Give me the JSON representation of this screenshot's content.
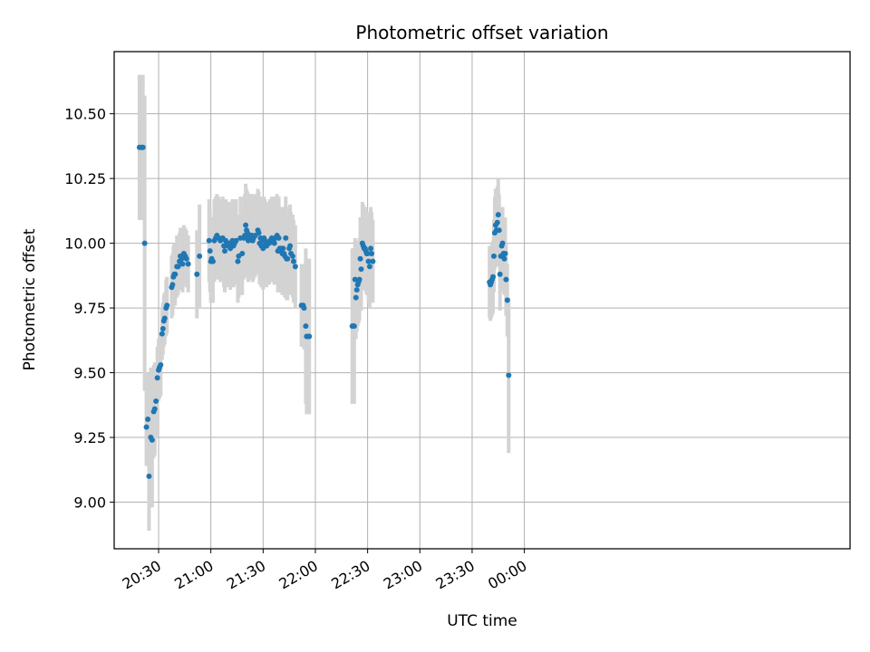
{
  "chart_data": {
    "type": "scatter",
    "title": "Photometric offset variation",
    "xlabel": "UTC time",
    "ylabel": "Photometric offset",
    "x_unit": "minutes after 20:00 UTC",
    "xlim": [
      4.5,
      427.0
    ],
    "ylim": [
      8.82,
      10.74
    ],
    "grid": true,
    "x_ticks": [
      {
        "value": 30,
        "label": "20:30"
      },
      {
        "value": 60,
        "label": "21:00"
      },
      {
        "value": 90,
        "label": "21:30"
      },
      {
        "value": 120,
        "label": "22:00"
      },
      {
        "value": 150,
        "label": "22:30"
      },
      {
        "value": 180,
        "label": "23:00"
      },
      {
        "value": 210,
        "label": "23:30"
      },
      {
        "value": 240,
        "label": "00:00"
      }
    ],
    "y_ticks": [
      {
        "value": 9.0,
        "label": "9.00"
      },
      {
        "value": 9.25,
        "label": "9.25"
      },
      {
        "value": 9.5,
        "label": "9.50"
      },
      {
        "value": 9.75,
        "label": "9.75"
      },
      {
        "value": 10.0,
        "label": "10.00"
      },
      {
        "value": 10.25,
        "label": "10.25"
      },
      {
        "value": 10.5,
        "label": "10.50"
      }
    ],
    "colors": {
      "points": "#1f77b4",
      "error_bars": "#d3d3d3",
      "grid": "#b0b0b0",
      "axes": "#000000"
    },
    "series": [
      {
        "points": [
          [
            19.0,
            10.37,
            0.28
          ],
          [
            20.0,
            10.37,
            0.28
          ],
          [
            21.0,
            10.37,
            0.28
          ],
          [
            22.0,
            10.0,
            0.57
          ],
          [
            23.0,
            9.29,
            0.15
          ],
          [
            23.8,
            9.32,
            0.18
          ],
          [
            24.5,
            9.1,
            0.21
          ],
          [
            25.5,
            9.25,
            0.27
          ],
          [
            26.3,
            9.24,
            0.26
          ],
          [
            27.2,
            9.35,
            0.18
          ],
          [
            27.8,
            9.36,
            0.18
          ],
          [
            28.5,
            9.39,
            0.14
          ],
          [
            29.3,
            9.48,
            0.12
          ],
          [
            30.0,
            9.51,
            0.12
          ],
          [
            30.5,
            9.52,
            0.12
          ],
          [
            31.2,
            9.53,
            0.12
          ],
          [
            32.0,
            9.65,
            0.1
          ],
          [
            32.5,
            9.67,
            0.1
          ],
          [
            33.0,
            9.7,
            0.1
          ],
          [
            33.5,
            9.71,
            0.1
          ],
          [
            34.3,
            9.75,
            0.11
          ],
          [
            34.8,
            9.76,
            0.11
          ],
          [
            37.5,
            9.83,
            0.12
          ],
          [
            38.0,
            9.84,
            0.12
          ],
          [
            38.5,
            9.87,
            0.12
          ],
          [
            39.0,
            9.88,
            0.12
          ],
          [
            39.5,
            9.88,
            0.12
          ],
          [
            40.5,
            9.91,
            0.12
          ],
          [
            41.2,
            9.91,
            0.11
          ],
          [
            42.0,
            9.93,
            0.11
          ],
          [
            42.5,
            9.95,
            0.11
          ],
          [
            43.2,
            9.94,
            0.11
          ],
          [
            43.8,
            9.92,
            0.11
          ],
          [
            44.5,
            9.96,
            0.11
          ],
          [
            45.3,
            9.95,
            0.11
          ],
          [
            46.0,
            9.94,
            0.11
          ],
          [
            47.0,
            9.92,
            0.11
          ],
          [
            52.0,
            9.88,
            0.17
          ],
          [
            53.5,
            9.95,
            0.2
          ],
          [
            59.0,
            10.01,
            0.16
          ],
          [
            59.5,
            9.97,
            0.16
          ],
          [
            60.0,
            9.93,
            0.16
          ],
          [
            60.5,
            9.94,
            0.16
          ],
          [
            61.2,
            9.93,
            0.16
          ],
          [
            62.0,
            10.01,
            0.16
          ],
          [
            62.8,
            10.02,
            0.16
          ],
          [
            63.5,
            10.03,
            0.16
          ],
          [
            64.5,
            10.02,
            0.16
          ],
          [
            65.5,
            10.01,
            0.16
          ],
          [
            66.8,
            10.02,
            0.16
          ],
          [
            67.5,
            9.99,
            0.16
          ],
          [
            68.0,
            9.97,
            0.16
          ],
          [
            68.5,
            10.01,
            0.16
          ],
          [
            69.2,
            10.0,
            0.16
          ],
          [
            69.8,
            9.99,
            0.16
          ],
          [
            70.5,
            10.0,
            0.16
          ],
          [
            71.2,
            9.98,
            0.16
          ],
          [
            71.8,
            10.0,
            0.16
          ],
          [
            72.4,
            10.01,
            0.16
          ],
          [
            73.0,
            9.99,
            0.16
          ],
          [
            73.6,
            10.0,
            0.16
          ],
          [
            74.5,
            10.01,
            0.16
          ],
          [
            75.5,
            9.93,
            0.16
          ],
          [
            76.0,
            9.95,
            0.16
          ],
          [
            77.0,
            10.02,
            0.16
          ],
          [
            78.0,
            9.96,
            0.16
          ],
          [
            79.0,
            10.02,
            0.16
          ],
          [
            79.5,
            10.03,
            0.16
          ],
          [
            80.0,
            10.07,
            0.16
          ],
          [
            80.5,
            10.05,
            0.16
          ],
          [
            81.0,
            10.04,
            0.16
          ],
          [
            81.5,
            10.01,
            0.16
          ],
          [
            82.0,
            10.02,
            0.16
          ],
          [
            82.5,
            10.03,
            0.16
          ],
          [
            83.0,
            10.03,
            0.16
          ],
          [
            83.5,
            10.03,
            0.16
          ],
          [
            84.0,
            10.01,
            0.16
          ],
          [
            84.5,
            10.02,
            0.16
          ],
          [
            85.5,
            10.03,
            0.16
          ],
          [
            87.0,
            10.05,
            0.16
          ],
          [
            87.5,
            10.04,
            0.16
          ],
          [
            88.0,
            10.0,
            0.16
          ],
          [
            88.5,
            10.02,
            0.16
          ],
          [
            89.0,
            9.99,
            0.16
          ],
          [
            89.5,
            10.01,
            0.16
          ],
          [
            90.0,
            9.98,
            0.16
          ],
          [
            90.5,
            10.02,
            0.16
          ],
          [
            91.0,
            10.01,
            0.16
          ],
          [
            91.5,
            10.0,
            0.16
          ],
          [
            92.0,
            9.99,
            0.16
          ],
          [
            93.5,
            10.0,
            0.16
          ],
          [
            94.0,
            10.01,
            0.16
          ],
          [
            95.0,
            10.02,
            0.16
          ],
          [
            95.5,
            10.01,
            0.16
          ],
          [
            96.0,
            10.01,
            0.16
          ],
          [
            96.5,
            10.0,
            0.16
          ],
          [
            97.0,
            10.02,
            0.16
          ],
          [
            98.0,
            10.03,
            0.16
          ],
          [
            98.5,
            9.97,
            0.16
          ],
          [
            99.0,
            10.02,
            0.16
          ],
          [
            99.5,
            9.98,
            0.16
          ],
          [
            100.0,
            9.97,
            0.16
          ],
          [
            100.5,
            9.98,
            0.16
          ],
          [
            101.0,
            9.96,
            0.16
          ],
          [
            101.5,
            9.98,
            0.16
          ],
          [
            102.0,
            9.96,
            0.16
          ],
          [
            102.5,
            9.95,
            0.16
          ],
          [
            103.0,
            10.02,
            0.16
          ],
          [
            103.5,
            9.94,
            0.16
          ],
          [
            104.0,
            9.94,
            0.16
          ],
          [
            105.0,
            9.98,
            0.16
          ],
          [
            105.5,
            9.99,
            0.16
          ],
          [
            106.0,
            9.96,
            0.16
          ],
          [
            107.0,
            9.95,
            0.16
          ],
          [
            107.5,
            9.93,
            0.16
          ],
          [
            108.5,
            9.91,
            0.16
          ],
          [
            112.0,
            9.76,
            0.16
          ],
          [
            112.5,
            9.76,
            0.16
          ],
          [
            113.0,
            9.76,
            0.16
          ],
          [
            113.5,
            9.75,
            0.16
          ],
          [
            114.5,
            9.68,
            0.3
          ],
          [
            115.0,
            9.64,
            0.3
          ],
          [
            116.0,
            9.64,
            0.3
          ],
          [
            116.5,
            9.64,
            0.3
          ],
          [
            141.2,
            9.68,
            0.3
          ],
          [
            141.8,
            9.68,
            0.3
          ],
          [
            142.3,
            9.68,
            0.3
          ],
          [
            142.8,
            9.86,
            0.16
          ],
          [
            143.3,
            9.79,
            0.16
          ],
          [
            143.8,
            9.82,
            0.16
          ],
          [
            144.3,
            9.84,
            0.16
          ],
          [
            144.8,
            9.85,
            0.16
          ],
          [
            145.3,
            9.86,
            0.16
          ],
          [
            145.8,
            9.94,
            0.16
          ],
          [
            146.3,
            9.9,
            0.16
          ],
          [
            147.0,
            10.0,
            0.16
          ],
          [
            147.5,
            9.99,
            0.16
          ],
          [
            148.0,
            9.98,
            0.16
          ],
          [
            148.5,
            9.98,
            0.16
          ],
          [
            149.0,
            9.97,
            0.16
          ],
          [
            149.5,
            9.96,
            0.16
          ],
          [
            150.0,
            9.96,
            0.16
          ],
          [
            150.5,
            9.93,
            0.16
          ],
          [
            151.2,
            9.91,
            0.16
          ],
          [
            151.8,
            9.98,
            0.16
          ],
          [
            152.3,
            9.96,
            0.16
          ],
          [
            153.0,
            9.93,
            0.16
          ],
          [
            220.0,
            9.85,
            0.14
          ],
          [
            220.5,
            9.84,
            0.14
          ],
          [
            221.0,
            9.85,
            0.14
          ],
          [
            221.5,
            9.86,
            0.14
          ],
          [
            222.0,
            9.87,
            0.14
          ],
          [
            222.5,
            9.95,
            0.14
          ],
          [
            223.0,
            10.04,
            0.14
          ],
          [
            223.5,
            10.07,
            0.14
          ],
          [
            224.0,
            10.05,
            0.14
          ],
          [
            224.5,
            10.08,
            0.14
          ],
          [
            225.0,
            10.11,
            0.14
          ],
          [
            225.5,
            10.05,
            0.14
          ],
          [
            226.0,
            9.88,
            0.14
          ],
          [
            226.5,
            9.95,
            0.14
          ],
          [
            227.0,
            9.99,
            0.14
          ],
          [
            227.5,
            10.0,
            0.14
          ],
          [
            228.0,
            9.96,
            0.14
          ],
          [
            228.5,
            9.94,
            0.14
          ],
          [
            229.0,
            9.96,
            0.14
          ],
          [
            229.5,
            9.86,
            0.14
          ],
          [
            230.2,
            9.78,
            0.14
          ],
          [
            231.0,
            9.49,
            0.3
          ]
        ]
      }
    ]
  }
}
